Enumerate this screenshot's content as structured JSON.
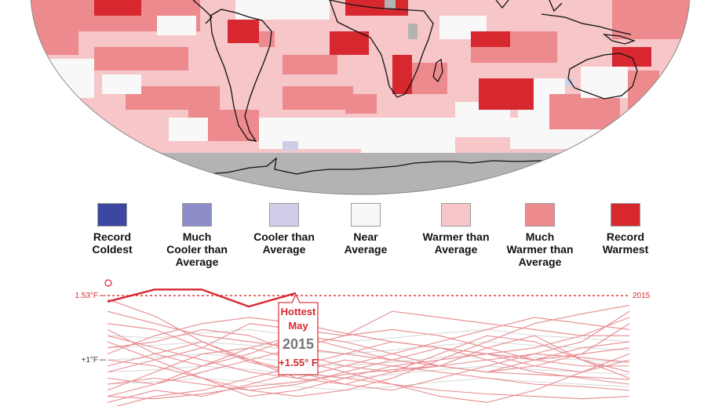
{
  "legend": {
    "items": [
      {
        "label": "Record\nColdest",
        "color": "#3b47a0"
      },
      {
        "label": "Much\nCooler than\nAverage",
        "color": "#8c8cc8"
      },
      {
        "label": "Cooler than\nAverage",
        "color": "#cfcde8"
      },
      {
        "label": "Near\nAverage",
        "color": "#f8f8f8"
      },
      {
        "label": "Warmer than\nAverage",
        "color": "#f7c6c8"
      },
      {
        "label": "Much\nWarmer than\nAverage",
        "color": "#ec8a8d"
      },
      {
        "label": "Record\nWarmest",
        "color": "#d7282f"
      }
    ]
  },
  "map": {
    "ocean_warm_color": "#f7c6c8",
    "much_warm_color": "#ec8a8d",
    "record_color": "#d7282f",
    "missing_color": "#b3b3b3",
    "near_color": "#f8f8f8"
  },
  "chart_data": {
    "type": "line",
    "title": "",
    "xlabel": "",
    "ylabel": "",
    "y_tick_labels": [
      "1.53°F",
      "+1°F"
    ],
    "y_ticks": [
      1.53,
      1.0
    ],
    "reference_line": {
      "value": 1.53,
      "label": "2015",
      "color": "#d7282f"
    },
    "highlight": {
      "name": "2015",
      "color": "#d7282f",
      "x": [
        0,
        1,
        2,
        3,
        4
      ],
      "y": [
        1.48,
        1.58,
        1.58,
        1.44,
        1.55
      ]
    },
    "annotation": {
      "title_line1": "Hottest",
      "title_line2": "May",
      "year": "2015",
      "value": "+1.55° F"
    },
    "background_color": "#e88a8e",
    "background_series": [
      [
        1.5,
        1.36,
        1.15,
        0.98,
        0.9,
        0.85,
        0.8,
        0.75,
        0.72,
        0.7,
        0.68,
        0.7
      ],
      [
        1.05,
        1.2,
        1.3,
        1.35,
        1.3,
        1.22,
        1.15,
        1.1,
        1.05,
        1.0,
        1.05,
        1.1
      ],
      [
        0.9,
        1.0,
        1.1,
        1.3,
        1.25,
        1.2,
        1.4,
        1.35,
        1.3,
        1.25,
        1.2,
        1.2
      ],
      [
        0.7,
        0.8,
        0.95,
        1.05,
        1.2,
        1.1,
        1.0,
        0.95,
        0.9,
        1.0,
        1.1,
        1.15
      ],
      [
        1.2,
        1.1,
        1.0,
        0.9,
        0.85,
        0.95,
        1.05,
        1.15,
        1.25,
        1.35,
        1.3,
        1.25
      ],
      [
        0.6,
        0.7,
        0.75,
        0.85,
        0.95,
        1.05,
        1.15,
        1.1,
        1.0,
        0.9,
        0.85,
        0.8
      ],
      [
        1.3,
        1.25,
        1.1,
        1.0,
        0.9,
        0.8,
        0.75,
        0.85,
        0.95,
        1.05,
        1.15,
        1.4
      ],
      [
        0.85,
        0.8,
        0.9,
        1.0,
        1.1,
        1.2,
        1.25,
        1.2,
        1.1,
        1.0,
        0.95,
        0.95
      ],
      [
        1.0,
        0.95,
        0.85,
        0.75,
        0.7,
        0.75,
        0.85,
        1.0,
        1.15,
        1.3,
        1.38,
        1.45
      ],
      [
        0.75,
        0.9,
        1.05,
        1.1,
        1.0,
        0.9,
        0.8,
        0.7,
        0.65,
        0.75,
        0.9,
        1.0
      ],
      [
        1.1,
        1.15,
        1.25,
        1.2,
        1.05,
        0.95,
        0.9,
        0.95,
        1.1,
        1.2,
        1.0,
        0.85
      ],
      [
        0.65,
        0.75,
        0.7,
        0.8,
        0.9,
        1.0,
        0.95,
        0.9,
        0.85,
        0.8,
        0.78,
        0.75
      ],
      [
        1.25,
        1.05,
        0.95,
        1.1,
        1.2,
        1.15,
        1.05,
        0.95,
        0.9,
        0.95,
        1.05,
        1.3
      ],
      [
        0.95,
        1.05,
        1.15,
        1.0,
        0.85,
        0.8,
        0.9,
        1.05,
        1.2,
        1.15,
        1.0,
        0.9
      ],
      [
        0.8,
        0.85,
        0.8,
        0.75,
        0.8,
        0.9,
        1.0,
        1.1,
        1.05,
        0.95,
        0.9,
        1.05
      ],
      [
        1.15,
        1.0,
        0.85,
        0.7,
        0.75,
        0.85,
        0.95,
        1.0,
        1.05,
        1.1,
        1.2,
        1.35
      ],
      [
        0.7,
        0.68,
        0.72,
        0.78,
        0.82,
        0.88,
        0.92,
        0.95,
        1.0,
        1.05,
        1.02,
        0.98
      ],
      [
        1.4,
        1.3,
        1.2,
        1.15,
        1.1,
        1.05,
        1.0,
        0.95,
        0.9,
        0.88,
        0.86,
        0.84
      ]
    ],
    "faint_color": "#d8d8d8",
    "faint_series": [
      [
        1.2,
        1.18,
        1.22,
        1.25,
        1.2,
        1.15,
        1.18,
        1.22,
        1.25,
        1.2,
        1.18,
        1.15
      ],
      [
        1.1,
        1.12,
        1.15,
        1.12,
        1.08,
        1.05,
        1.08,
        1.12,
        1.15,
        1.12,
        1.1,
        1.08
      ],
      [
        1.0,
        1.02,
        1.05,
        1.02,
        0.98,
        0.95,
        0.98,
        1.02,
        1.05,
        1.02,
        1.0,
        0.98
      ],
      [
        0.9,
        0.92,
        0.95,
        0.92,
        0.88,
        0.85,
        0.88,
        0.92,
        0.95,
        0.92,
        0.9,
        0.88
      ],
      [
        0.8,
        0.82,
        0.85,
        0.82,
        0.78,
        0.75,
        0.78,
        0.82,
        0.85,
        0.82,
        0.8,
        0.78
      ]
    ],
    "ylim": [
      0.62,
      1.64
    ]
  }
}
